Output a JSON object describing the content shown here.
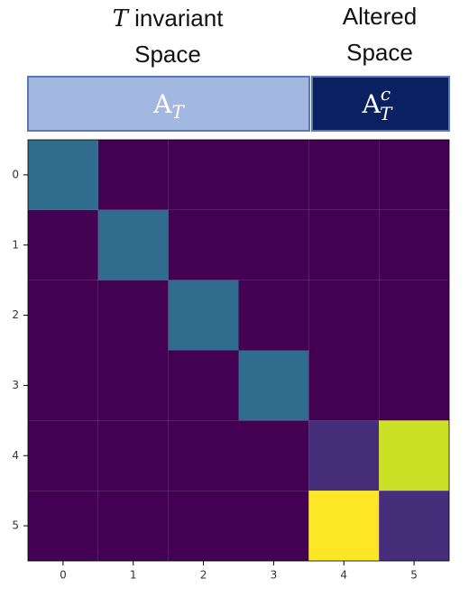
{
  "chart_data": {
    "type": "heatmap",
    "header": {
      "left_title_var": "T",
      "left_title_lines": [
        "invariant",
        "Space"
      ],
      "right_title_lines": [
        "Altered",
        "Space"
      ],
      "left_box": {
        "base": "A",
        "sub": "T"
      },
      "right_box": {
        "base": "A",
        "sub": "T",
        "sup": "c"
      }
    },
    "colormap": "viridis",
    "xticks": [
      0,
      1,
      2,
      3,
      4,
      5
    ],
    "yticks": [
      0,
      1,
      2,
      3,
      4,
      5
    ],
    "xlim": [
      -0.5,
      5.5
    ],
    "ylim": [
      5.5,
      -0.5
    ],
    "values": [
      [
        0.35,
        0,
        0,
        0,
        0,
        0
      ],
      [
        0,
        0.35,
        0,
        0,
        0,
        0
      ],
      [
        0,
        0,
        0.35,
        0,
        0,
        0
      ],
      [
        0,
        0,
        0,
        0.35,
        0,
        0
      ],
      [
        0,
        0,
        0,
        0,
        0.13,
        0.92
      ],
      [
        0,
        0,
        0,
        0,
        1,
        0.13
      ]
    ]
  }
}
